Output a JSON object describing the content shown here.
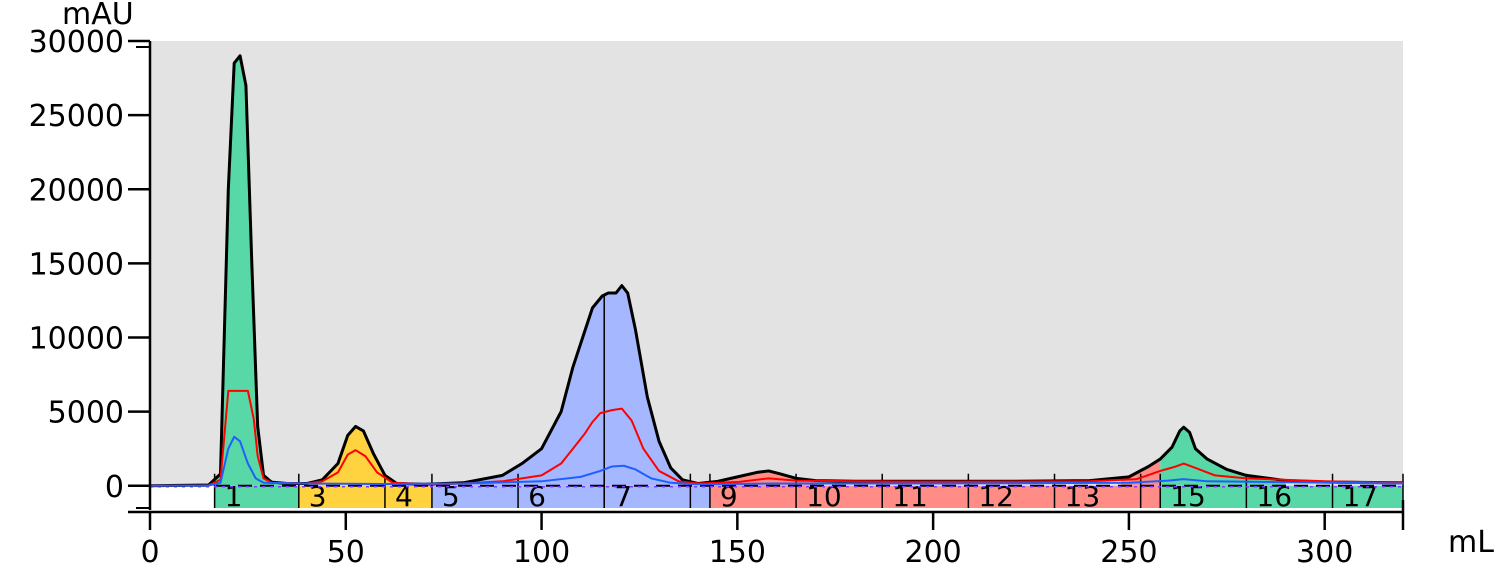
{
  "chart_data": {
    "type": "area",
    "title": "",
    "xlabel": "mL",
    "ylabel": "mAU",
    "xlim": [
      0,
      320
    ],
    "ylim": [
      -1500,
      30000
    ],
    "x_ticks": [
      "0",
      "50",
      "100",
      "150",
      "200",
      "250",
      "300"
    ],
    "y_ticks": [
      "0",
      "5000",
      "10000",
      "15000",
      "20000",
      "25000",
      "30000"
    ],
    "background_color": "#e3e3e3",
    "grid": false,
    "legend": "none",
    "series": [
      {
        "color": "#000000",
        "points": [
          [
            0,
            0
          ],
          [
            15,
            50
          ],
          [
            18,
            800
          ],
          [
            20,
            20000
          ],
          [
            21.5,
            28500
          ],
          [
            23,
            29000
          ],
          [
            24.5,
            27000
          ],
          [
            26,
            15000
          ],
          [
            27.5,
            4000
          ],
          [
            29,
            700
          ],
          [
            31,
            250
          ],
          [
            35,
            150
          ],
          [
            40,
            150
          ],
          [
            44,
            400
          ],
          [
            48,
            1500
          ],
          [
            50.5,
            3400
          ],
          [
            52.5,
            4000
          ],
          [
            54.5,
            3700
          ],
          [
            57,
            2200
          ],
          [
            60,
            700
          ],
          [
            63,
            150
          ],
          [
            70,
            100
          ],
          [
            80,
            200
          ],
          [
            90,
            700
          ],
          [
            95,
            1500
          ],
          [
            100,
            2500
          ],
          [
            105,
            5000
          ],
          [
            108,
            8000
          ],
          [
            110.5,
            10000
          ],
          [
            113,
            12000
          ],
          [
            115.5,
            12800
          ],
          [
            117,
            13000
          ],
          [
            119,
            13000
          ],
          [
            120.5,
            13500
          ],
          [
            122,
            13000
          ],
          [
            124,
            10500
          ],
          [
            127,
            6000
          ],
          [
            130,
            3000
          ],
          [
            133,
            1200
          ],
          [
            136,
            400
          ],
          [
            140,
            150
          ],
          [
            145,
            300
          ],
          [
            150,
            600
          ],
          [
            155,
            900
          ],
          [
            158,
            1000
          ],
          [
            161,
            800
          ],
          [
            165,
            500
          ],
          [
            170,
            350
          ],
          [
            180,
            300
          ],
          [
            200,
            300
          ],
          [
            220,
            300
          ],
          [
            240,
            350
          ],
          [
            250,
            600
          ],
          [
            255,
            1300
          ],
          [
            258,
            1800
          ],
          [
            261,
            2600
          ],
          [
            263,
            3700
          ],
          [
            264,
            3950
          ],
          [
            265.5,
            3600
          ],
          [
            267,
            2500
          ],
          [
            270,
            1800
          ],
          [
            275,
            1100
          ],
          [
            280,
            700
          ],
          [
            290,
            350
          ],
          [
            300,
            250
          ],
          [
            320,
            200
          ]
        ]
      },
      {
        "color": "#ff0000",
        "points": [
          [
            0,
            0
          ],
          [
            15,
            30
          ],
          [
            18,
            400
          ],
          [
            20,
            6400
          ],
          [
            25,
            6400
          ],
          [
            26.5,
            4500
          ],
          [
            27.5,
            2000
          ],
          [
            29,
            500
          ],
          [
            31,
            200
          ],
          [
            40,
            150
          ],
          [
            44,
            300
          ],
          [
            48,
            900
          ],
          [
            50.5,
            2100
          ],
          [
            52.5,
            2400
          ],
          [
            55,
            2000
          ],
          [
            58,
            900
          ],
          [
            62,
            200
          ],
          [
            70,
            100
          ],
          [
            80,
            150
          ],
          [
            90,
            300
          ],
          [
            100,
            700
          ],
          [
            105,
            1500
          ],
          [
            108,
            2500
          ],
          [
            111,
            3500
          ],
          [
            113,
            4300
          ],
          [
            115,
            4900
          ],
          [
            118,
            5100
          ],
          [
            120.5,
            5200
          ],
          [
            123,
            4400
          ],
          [
            126,
            2500
          ],
          [
            130,
            1000
          ],
          [
            135,
            300
          ],
          [
            140,
            150
          ],
          [
            150,
            250
          ],
          [
            158,
            500
          ],
          [
            165,
            350
          ],
          [
            180,
            300
          ],
          [
            200,
            280
          ],
          [
            240,
            300
          ],
          [
            252,
            450
          ],
          [
            258,
            1000
          ],
          [
            262,
            1300
          ],
          [
            264,
            1500
          ],
          [
            267,
            1200
          ],
          [
            272,
            700
          ],
          [
            280,
            500
          ],
          [
            300,
            300
          ],
          [
            320,
            200
          ]
        ]
      },
      {
        "color": "#1f5fff",
        "points": [
          [
            0,
            0
          ],
          [
            15,
            20
          ],
          [
            18,
            200
          ],
          [
            20,
            2500
          ],
          [
            21.5,
            3300
          ],
          [
            23,
            3000
          ],
          [
            25,
            1500
          ],
          [
            27,
            500
          ],
          [
            29,
            200
          ],
          [
            40,
            150
          ],
          [
            60,
            120
          ],
          [
            80,
            150
          ],
          [
            100,
            300
          ],
          [
            110,
            600
          ],
          [
            115,
            1000
          ],
          [
            118,
            1300
          ],
          [
            121,
            1350
          ],
          [
            124,
            1100
          ],
          [
            128,
            500
          ],
          [
            133,
            200
          ],
          [
            140,
            100
          ],
          [
            160,
            150
          ],
          [
            200,
            150
          ],
          [
            250,
            200
          ],
          [
            260,
            350
          ],
          [
            264,
            450
          ],
          [
            270,
            300
          ],
          [
            320,
            150
          ]
        ]
      }
    ],
    "fractions": [
      {
        "label": "1",
        "start": 16.5,
        "end": 38,
        "color": "#57d8a6",
        "peak": "A"
      },
      {
        "label": "",
        "start": 38,
        "end": 38,
        "color": "#ffd23f",
        "peak": "B"
      },
      {
        "label": "3",
        "start": 38,
        "end": 60,
        "color": "#ffd23f",
        "peak": "B"
      },
      {
        "label": "4",
        "start": 60,
        "end": 72,
        "color": "#ffd23f",
        "peak": "B"
      },
      {
        "label": "5",
        "start": 72,
        "end": 94,
        "color": "#a5b8ff",
        "peak": "C"
      },
      {
        "label": "6",
        "start": 94,
        "end": 116,
        "color": "#a5b8ff",
        "peak": "C"
      },
      {
        "label": "7",
        "start": 116,
        "end": 138,
        "color": "#a5b8ff",
        "peak": "C"
      },
      {
        "label": "",
        "start": 138,
        "end": 143,
        "color": "#a5b8ff",
        "peak": "C"
      },
      {
        "label": "9",
        "start": 143,
        "end": 165,
        "color": "#ff8c85",
        "peak": "D"
      },
      {
        "label": "10",
        "start": 165,
        "end": 187,
        "color": "#ff8c85",
        "peak": "D"
      },
      {
        "label": "11",
        "start": 187,
        "end": 209,
        "color": "#ff8c85",
        "peak": "D"
      },
      {
        "label": "12",
        "start": 209,
        "end": 231,
        "color": "#ff8c85",
        "peak": "D"
      },
      {
        "label": "13",
        "start": 231,
        "end": 253,
        "color": "#ff8c85",
        "peak": "D"
      },
      {
        "label": "",
        "start": 253,
        "end": 258,
        "color": "#ff8c85",
        "peak": "D"
      },
      {
        "label": "15",
        "start": 258,
        "end": 280,
        "color": "#57d8a6",
        "peak": "E"
      },
      {
        "label": "16",
        "start": 280,
        "end": 302,
        "color": "#57d8a6",
        "peak": "E"
      },
      {
        "label": "17",
        "start": 302,
        "end": 320,
        "color": "#57d8a6",
        "peak": "E"
      }
    ],
    "peak_fills": [
      {
        "start": 16.5,
        "end": 36,
        "color": "#57d8a6"
      },
      {
        "start": 40,
        "end": 64,
        "color": "#ffd23f"
      },
      {
        "start": 70,
        "end": 140,
        "color": "#a5b8ff"
      },
      {
        "start": 143,
        "end": 170,
        "color": "#ff8c85"
      },
      {
        "start": 248,
        "end": 258,
        "color": "#ff8c85"
      },
      {
        "start": 258,
        "end": 290,
        "color": "#57d8a6"
      }
    ],
    "marker_x": 116
  }
}
